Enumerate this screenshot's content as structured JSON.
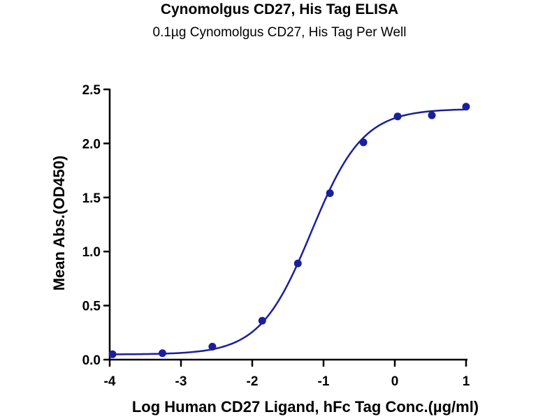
{
  "chart_data": {
    "type": "scatter",
    "title": "Cynomolgus CD27, His Tag ELISA",
    "subtitle": "0.1µg Cynomolgus CD27, His Tag Per Well",
    "xlabel": "Log Human CD27 Ligand, hFc Tag Conc.(µg/ml)",
    "ylabel": "Mean Abs.(OD450)",
    "xlim": [
      -4,
      1
    ],
    "ylim": [
      0,
      2.5
    ],
    "xticks": [
      -4,
      -3,
      -2,
      -1,
      0,
      1
    ],
    "xtick_labels": [
      "-4",
      "-3",
      "-2",
      "-1",
      "0",
      "1"
    ],
    "yticks": [
      0,
      0.5,
      1,
      1.5,
      2,
      2.5
    ],
    "ytick_labels": [
      "0.0",
      "0.5",
      "1.0",
      "1.5",
      "2.0",
      "2.5"
    ],
    "grid": false,
    "series": [
      {
        "x": [
          -3.96,
          -3.26,
          -2.56,
          -1.86,
          -1.36,
          -0.91,
          -0.44,
          0.04,
          0.52,
          1.0
        ],
        "y": [
          0.05,
          0.06,
          0.12,
          0.36,
          0.89,
          1.54,
          2.01,
          2.25,
          2.26,
          2.34
        ],
        "color": "#1a1f9c",
        "fit": "sigmoidal"
      }
    ]
  }
}
